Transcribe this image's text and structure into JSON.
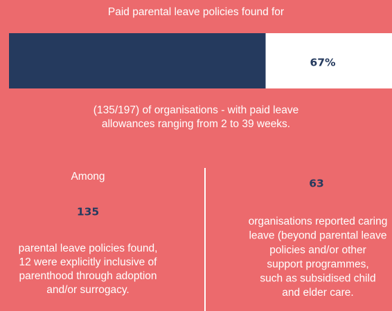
{
  "header": {
    "title": "Paid parental leave policies found for"
  },
  "bar": {
    "percent": {
      "value": 67,
      "label": "67%"
    },
    "scale": [
      0,
      100
    ]
  },
  "summary": {
    "lines": [
      "(135/197) of organisations - with paid leave",
      "allowances ranging from 2 to 39 weeks."
    ]
  },
  "left": {
    "intro": "Among",
    "number": "135",
    "lines": [
      "parental leave policies found,",
      "12 were explicitly inclusive of",
      "parenthood through adoption",
      "and/or surrogacy."
    ]
  },
  "right": {
    "number": "63",
    "lines": [
      "organisations reported caring",
      "leave (beyond parental leave",
      "policies and/or other",
      "support programmes,",
      "such as subsidised child",
      "and elder care."
    ]
  }
}
